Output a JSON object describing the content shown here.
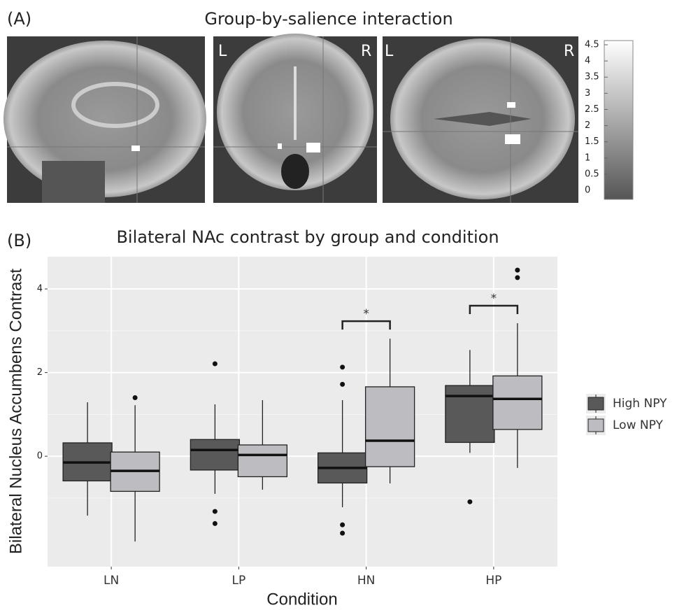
{
  "panel_a": {
    "label": "(A)",
    "title": "Group-by-salience interaction",
    "view_labels": [
      "L",
      "R",
      "L",
      "R"
    ],
    "colorbar": {
      "ylim": [
        -0.28,
        4.63
      ],
      "yticks": [
        0,
        0.5,
        1,
        1.5,
        2,
        2.5,
        3,
        3.5,
        4,
        4.5
      ]
    }
  },
  "chart_data": {
    "type": "boxplot",
    "panel_label": "(B)",
    "title": "Bilateral NAc contrast by group and condition",
    "xlabel": "Condition",
    "ylabel": "Bilateral Nucleus Accumbens Contrast",
    "categories": [
      "LN",
      "LP",
      "HN",
      "HP"
    ],
    "series": [
      {
        "name": "High NPY",
        "color": "#595959",
        "whisker_low": [
          -1.42,
          -0.9,
          -1.22,
          0.08
        ],
        "q1": [
          -0.59,
          -0.33,
          -0.64,
          0.33
        ],
        "median": [
          -0.15,
          0.15,
          -0.28,
          1.44
        ],
        "q3": [
          0.32,
          0.4,
          0.08,
          1.69
        ],
        "whisker_high": [
          1.29,
          1.24,
          1.34,
          2.54
        ],
        "outliers": [
          [],
          [
            2.21,
            -1.32,
            -1.61
          ],
          [
            2.13,
            1.72,
            -1.64,
            -1.84
          ],
          [
            -1.09
          ]
        ]
      },
      {
        "name": "Low NPY",
        "color": "#bdbdc1",
        "whisker_low": [
          -2.04,
          -0.8,
          -0.65,
          -0.28
        ],
        "q1": [
          -0.84,
          -0.49,
          -0.25,
          0.64
        ],
        "median": [
          -0.35,
          0.03,
          0.37,
          1.37
        ],
        "q3": [
          0.1,
          0.27,
          1.66,
          1.92
        ],
        "whisker_high": [
          1.22,
          1.34,
          2.81,
          3.18
        ],
        "outliers": [
          [
            1.4
          ],
          [],
          [],
          [
            4.45,
            4.27
          ]
        ]
      }
    ],
    "ylim": [
      -2.64,
      4.77
    ],
    "yticks": [
      0,
      2,
      4
    ],
    "minor_yticks": [
      -1,
      1,
      3
    ],
    "grid": true,
    "annotations": [
      {
        "text": "*",
        "category": "HN"
      },
      {
        "text": "*",
        "category": "HP"
      }
    ],
    "legend": "right"
  }
}
